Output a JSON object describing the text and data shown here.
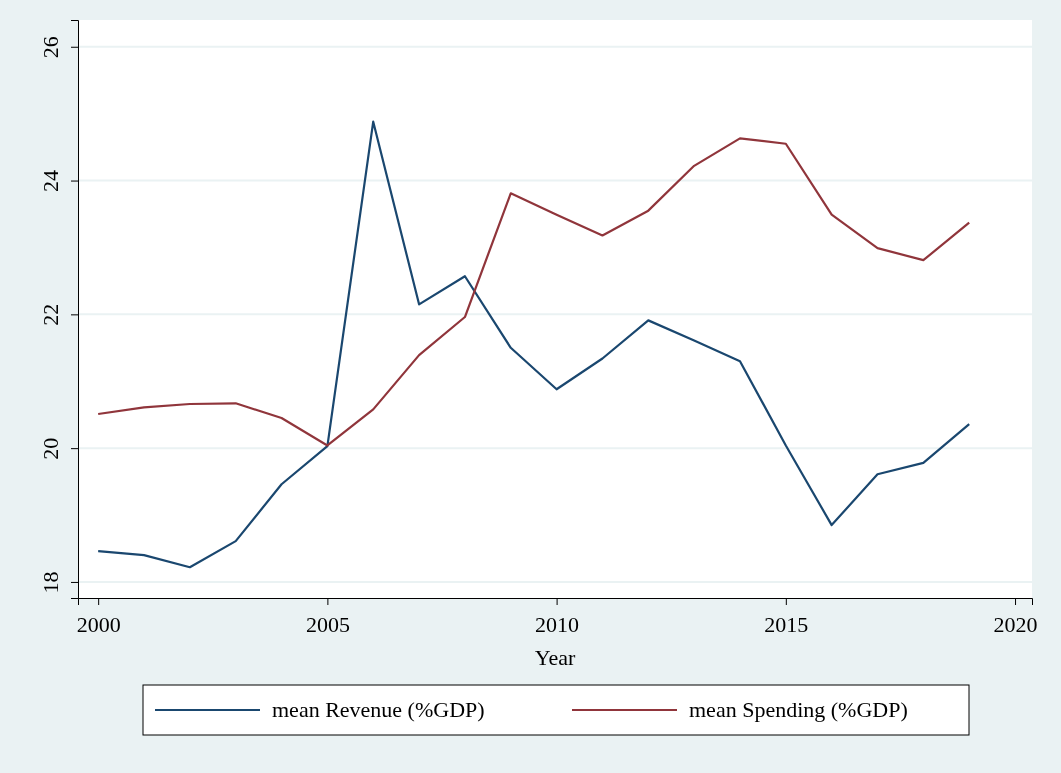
{
  "chart_data": {
    "type": "line",
    "xlabel": "Year",
    "x": [
      2000,
      2001,
      2002,
      2003,
      2004,
      2005,
      2006,
      2007,
      2008,
      2009,
      2010,
      2011,
      2012,
      2013,
      2014,
      2015,
      2016,
      2017,
      2018,
      2019
    ],
    "series": [
      {
        "name": "mean Revenue (%GDP)",
        "color": "#1a476f",
        "values": [
          18.46,
          18.4,
          18.22,
          18.61,
          19.46,
          20.03,
          24.88,
          22.15,
          22.57,
          21.5,
          20.88,
          21.34,
          21.91,
          21.61,
          21.3,
          20.04,
          18.85,
          19.61,
          19.78,
          20.36
        ]
      },
      {
        "name": "mean Spending (%GDP)",
        "color": "#90353b",
        "values": [
          20.51,
          20.61,
          20.66,
          20.67,
          20.45,
          20.04,
          20.58,
          21.39,
          21.96,
          23.81,
          23.49,
          23.18,
          23.55,
          24.22,
          24.63,
          24.55,
          23.49,
          22.99,
          22.81,
          23.37
        ]
      }
    ],
    "xlim": [
      1999.56,
      2020.37
    ],
    "xticks": [
      2000,
      2005,
      2010,
      2015,
      2020
    ],
    "ylim": [
      17.76,
      26.4
    ],
    "yticks": [
      18,
      20,
      22,
      24,
      26
    ],
    "grid": "y",
    "legend": "bottom"
  }
}
